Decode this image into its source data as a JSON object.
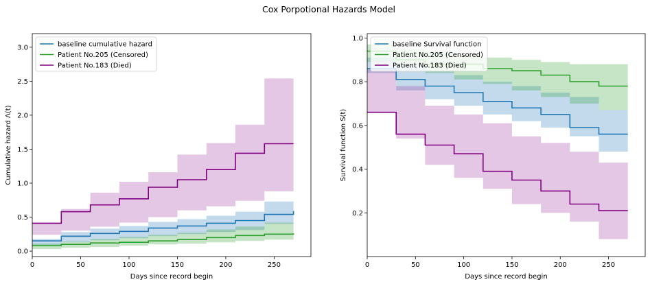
{
  "figure_title": "Cox Porpotional Hazards Model",
  "colors": {
    "baseline": "#1f77b4",
    "patient205": "#2ca02c",
    "patient183": "#800080",
    "band_baseline": "#1f77b4",
    "band_patient205": "#2ca02c",
    "band_patient183": "#9a30a0"
  },
  "chart_data": [
    {
      "type": "line",
      "step": true,
      "xlabel": "Days since record begin",
      "ylabel": "Cumulative hazard Λ(t)",
      "xlim": [
        0,
        288
      ],
      "ylim": [
        -0.08,
        3.2
      ],
      "xticks": [
        0,
        50,
        100,
        150,
        200,
        250
      ],
      "yticks": [
        0.0,
        0.5,
        1.0,
        1.5,
        2.0,
        2.5,
        3.0
      ],
      "ytick_labels": [
        "0.0",
        "0.5",
        "1.0",
        "1.5",
        "2.0",
        "2.5",
        "3.0"
      ],
      "legend_position": "top-left",
      "x": [
        0,
        30,
        60,
        90,
        120,
        150,
        180,
        210,
        240,
        270
      ],
      "series": [
        {
          "name": "baseline cumulative hazard",
          "color_key": "baseline",
          "values": [
            0.15,
            0.22,
            0.26,
            0.29,
            0.34,
            0.37,
            0.41,
            0.45,
            0.54,
            0.59
          ],
          "lower": [
            0.09,
            0.13,
            0.16,
            0.19,
            0.22,
            0.25,
            0.28,
            0.31,
            0.4,
            0.46
          ],
          "upper": [
            0.18,
            0.28,
            0.33,
            0.37,
            0.43,
            0.47,
            0.52,
            0.58,
            0.73,
            0.84
          ]
        },
        {
          "name": "Patient No.205 (Censored)",
          "color_key": "patient205",
          "values": [
            0.08,
            0.1,
            0.12,
            0.13,
            0.15,
            0.17,
            0.2,
            0.23,
            0.25,
            0.26
          ],
          "lower": [
            0.03,
            0.05,
            0.06,
            0.08,
            0.1,
            0.11,
            0.13,
            0.15,
            0.17,
            0.18
          ],
          "upper": [
            0.11,
            0.14,
            0.18,
            0.21,
            0.24,
            0.27,
            0.32,
            0.36,
            0.42,
            0.48
          ]
        },
        {
          "name": "Patient No.183 (Died)",
          "color_key": "patient183",
          "values": [
            0.41,
            0.58,
            0.68,
            0.77,
            0.94,
            1.05,
            1.2,
            1.44,
            1.58,
            1.58
          ],
          "lower": [
            0.24,
            0.3,
            0.36,
            0.42,
            0.5,
            0.6,
            0.66,
            0.74,
            0.88,
            1.02
          ],
          "upper": [
            0.41,
            0.62,
            0.86,
            1.02,
            1.16,
            1.42,
            1.59,
            1.86,
            2.54,
            3.04
          ]
        }
      ]
    },
    {
      "type": "line",
      "step": true,
      "xlabel": "Days since record begin",
      "ylabel": "Survival function S(t)",
      "xlim": [
        0,
        288
      ],
      "ylim": [
        0.0,
        1.02
      ],
      "xticks": [
        0,
        50,
        100,
        150,
        200,
        250
      ],
      "yticks": [
        0.2,
        0.4,
        0.6,
        0.8,
        1.0
      ],
      "ytick_labels": [
        "0.2",
        "0.4",
        "0.6",
        "0.8",
        "1.0"
      ],
      "legend_position": "top-left",
      "x": [
        0,
        30,
        60,
        90,
        120,
        150,
        180,
        210,
        240,
        270
      ],
      "series": [
        {
          "name": "baseline Survival function",
          "color_key": "baseline",
          "values": [
            0.86,
            0.81,
            0.78,
            0.75,
            0.71,
            0.68,
            0.65,
            0.59,
            0.56,
            0.56
          ],
          "lower": [
            0.84,
            0.76,
            0.72,
            0.69,
            0.65,
            0.62,
            0.59,
            0.55,
            0.48,
            0.43
          ],
          "upper": [
            0.91,
            0.88,
            0.85,
            0.83,
            0.8,
            0.78,
            0.75,
            0.73,
            0.67,
            0.62
          ]
        },
        {
          "name": "Patient No.205 (Censored)",
          "color_key": "patient205",
          "values": [
            0.94,
            0.9,
            0.88,
            0.88,
            0.86,
            0.85,
            0.83,
            0.8,
            0.78,
            0.78
          ],
          "lower": [
            0.89,
            0.87,
            0.84,
            0.81,
            0.79,
            0.76,
            0.73,
            0.7,
            0.67,
            0.62
          ],
          "upper": [
            0.97,
            0.95,
            0.94,
            0.92,
            0.91,
            0.9,
            0.89,
            0.88,
            0.88,
            0.88
          ]
        },
        {
          "name": "Patient No.183 (Died)",
          "color_key": "patient183",
          "values": [
            0.66,
            0.56,
            0.51,
            0.47,
            0.39,
            0.35,
            0.3,
            0.24,
            0.21,
            0.21
          ],
          "lower": [
            0.66,
            0.54,
            0.42,
            0.36,
            0.31,
            0.24,
            0.2,
            0.16,
            0.08,
            0.05
          ],
          "upper": [
            0.86,
            0.78,
            0.69,
            0.65,
            0.61,
            0.55,
            0.52,
            0.48,
            0.43,
            0.36
          ]
        }
      ]
    }
  ]
}
